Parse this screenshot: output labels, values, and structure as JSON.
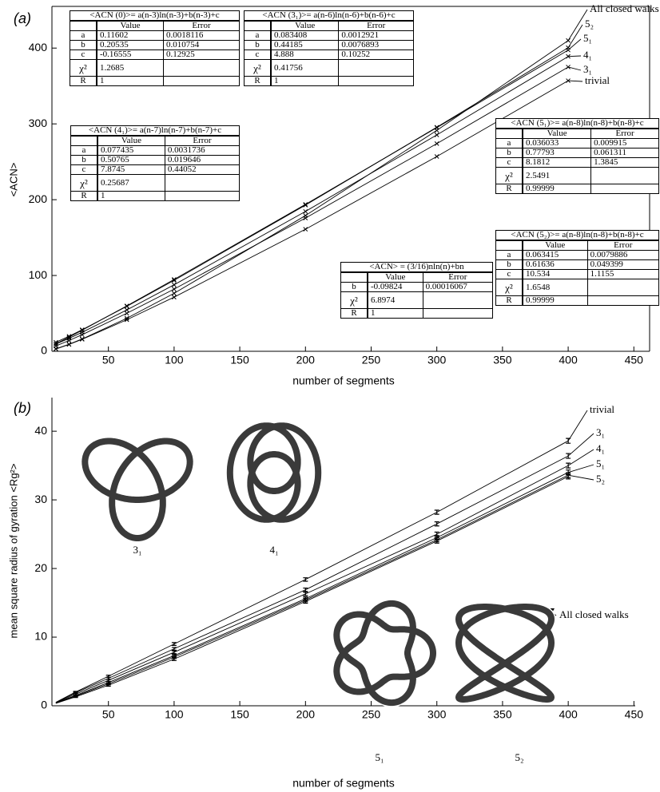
{
  "chart_data": [
    {
      "type": "line",
      "panel_label": "(a)",
      "xlabel": "number of segments",
      "ylabel": "<ACN>",
      "xlim": [
        7,
        462
      ],
      "ylim": [
        0,
        455
      ],
      "xticks": [
        50,
        100,
        150,
        200,
        250,
        300,
        350,
        400,
        450
      ],
      "yticks": [
        0,
        100,
        200,
        300,
        400
      ],
      "x": [
        10,
        20,
        30,
        64,
        100,
        200,
        300,
        400
      ],
      "series": [
        {
          "name": "All closed walks",
          "color": "#000000",
          "values": [
            3.3,
            9.3,
            16.2,
            43.6,
            76.5,
            179,
            291.4,
            410
          ]
        },
        {
          "name": "5₂",
          "color": "#000000",
          "values": [
            11.9,
            19.8,
            28.4,
            59.3,
            93.6,
            192.8,
            295.6,
            400.5
          ]
        },
        {
          "name": "5₁",
          "color": "#000000",
          "values": [
            9.8,
            18.6,
            27.8,
            59.9,
            94.8,
            193.8,
            295,
            397.4
          ]
        },
        {
          "name": "4₁",
          "color": "#000000",
          "values": [
            9.6,
            17.1,
            25.1,
            54.6,
            87.7,
            184.5,
            285.4,
            389
          ]
        },
        {
          "name": "3₁",
          "color": "#000000",
          "values": [
            7.1,
            14.2,
            21.9,
            50.1,
            82,
            175.8,
            274,
            375
          ]
        },
        {
          "name": "trivial",
          "color": "#000000",
          "values": [
            3,
            8.9,
            15.8,
            41.6,
            71.4,
            161,
            257,
            357
          ]
        }
      ],
      "tables": [
        {
          "title": "<ACN (0)>= a(n-3)ln(n-3)+b(n-3)+c",
          "columns": [
            "Value",
            "Error"
          ],
          "rows": [
            [
              "a",
              "0.11602",
              "0.0018116"
            ],
            [
              "b",
              "0.20535",
              "0.010754"
            ],
            [
              "c",
              "-0.16555",
              "0.12925"
            ],
            [
              "χ²",
              "1.2685"
            ],
            [
              "R",
              "1"
            ]
          ]
        },
        {
          "title": "<ACN (3₁)>= a(n-6)ln(n-6)+b(n-6)+c",
          "columns": [
            "Value",
            "Error"
          ],
          "rows": [
            [
              "a",
              "0.083408",
              "0.0012921"
            ],
            [
              "b",
              "0.44185",
              "0.0076893"
            ],
            [
              "c",
              "4.888",
              "0.10252"
            ],
            [
              "χ²",
              "0.41756"
            ],
            [
              "R",
              "1"
            ]
          ]
        },
        {
          "title": "<ACN (4₁)>= a(n-7)ln(n-7)+b(n-7)+c",
          "columns": [
            "Value",
            "Error"
          ],
          "rows": [
            [
              "a",
              "0.077435",
              "0.0031736"
            ],
            [
              "b",
              "0.50765",
              "0.019646"
            ],
            [
              "c",
              "7.8745",
              "0.44052"
            ],
            [
              "χ²",
              "0.25687"
            ],
            [
              "R",
              "1"
            ]
          ]
        },
        {
          "title": "<ACN (5₁)>= a(n-8)ln(n-8)+b(n-8)+c",
          "columns": [
            "Value",
            "Error"
          ],
          "rows": [
            [
              "a",
              "0.036033",
              "0.009915"
            ],
            [
              "b",
              "0.77793",
              "0.061311"
            ],
            [
              "c",
              "8.1812",
              "1.3845"
            ],
            [
              "χ²",
              "2.5491"
            ],
            [
              "R",
              "0.99999"
            ]
          ]
        },
        {
          "title": "<ACN (5₂)>= a(n-8)ln(n-8)+b(n-8)+c",
          "columns": [
            "Value",
            "Error"
          ],
          "rows": [
            [
              "a",
              "0.063415",
              "0.0079886"
            ],
            [
              "b",
              "0.61636",
              "0.049399"
            ],
            [
              "c",
              "10.534",
              "1.1155"
            ],
            [
              "χ²",
              "1.6548"
            ],
            [
              "R",
              "0.99999"
            ]
          ]
        },
        {
          "title": "<ACN> = (3/16)nln(n)+bn",
          "columns": [
            "Value",
            "Error"
          ],
          "rows": [
            [
              "b",
              "-0.09824",
              "0.00016067"
            ],
            [
              "χ²",
              "6.8974"
            ],
            [
              "R",
              "1"
            ]
          ]
        }
      ]
    },
    {
      "type": "line",
      "panel_label": "(b)",
      "xlabel": "number of segments",
      "ylabel": "mean square radius of gyration <Rg²>",
      "xlim": [
        7,
        451
      ],
      "ylim": [
        0,
        44.9
      ],
      "xticks": [
        50,
        100,
        150,
        200,
        250,
        300,
        350,
        400,
        450
      ],
      "yticks": [
        0,
        10,
        20,
        30,
        40
      ],
      "x": [
        10,
        25,
        50,
        100,
        200,
        300,
        400
      ],
      "errors": [
        null,
        0.1,
        0.15,
        0.2,
        0.25,
        0.3,
        0.35
      ],
      "series": [
        {
          "name": "trivial",
          "color": "#000000",
          "values": [
            0.5,
            2.0,
            4.3,
            9.0,
            18.4,
            28.2,
            38.6
          ]
        },
        {
          "name": "3₁",
          "color": "#000000",
          "values": [
            0.45,
            1.9,
            4.0,
            8.3,
            16.9,
            26.5,
            36.4
          ]
        },
        {
          "name": "4₁",
          "color": "#000000",
          "values": [
            0.42,
            1.7,
            3.7,
            7.8,
            16.3,
            25.0,
            35.0
          ]
        },
        {
          "name": "5₁",
          "color": "#000000",
          "values": [
            0.4,
            1.5,
            3.4,
            7.3,
            15.6,
            24.5,
            34.0
          ]
        },
        {
          "name": "5₂",
          "color": "#000000",
          "values": [
            0.37,
            1.4,
            3.2,
            7.1,
            15.4,
            24.2,
            33.6
          ]
        },
        {
          "name": "All closed walks",
          "color": "#000000",
          "values": [
            0.35,
            1.3,
            3.0,
            6.8,
            15.2,
            24.0,
            33.4
          ]
        }
      ],
      "knot_labels": [
        "3₁",
        "4₁",
        "5₁",
        "5₂"
      ]
    }
  ]
}
